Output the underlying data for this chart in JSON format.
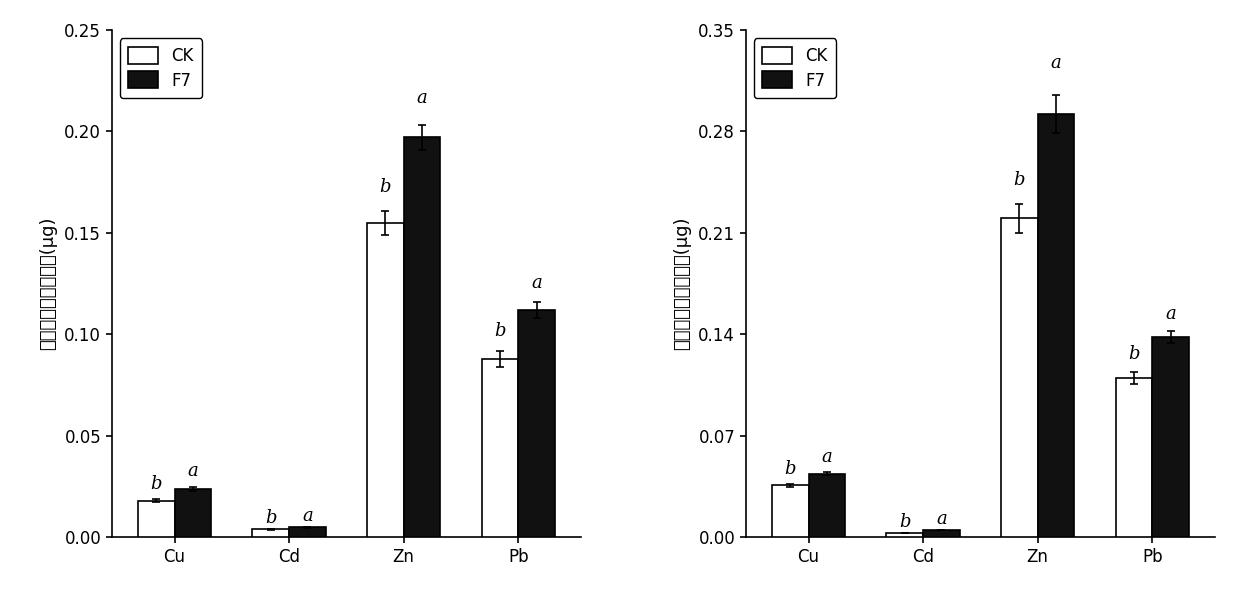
{
  "left": {
    "ylabel": "地上部重金属累积量(μg)",
    "categories": [
      "Cu",
      "Cd",
      "Zn",
      "Pb"
    ],
    "CK_values": [
      0.018,
      0.004,
      0.155,
      0.088
    ],
    "F7_values": [
      0.024,
      0.005,
      0.197,
      0.112
    ],
    "CK_errors": [
      0.0008,
      0.0003,
      0.006,
      0.004
    ],
    "F7_errors": [
      0.001,
      0.0003,
      0.006,
      0.004
    ],
    "ylim": [
      0,
      0.25
    ],
    "yticks": [
      0.0,
      0.05,
      0.1,
      0.15,
      0.2,
      0.25
    ],
    "CK_labels": [
      "b",
      "b",
      "b",
      "b"
    ],
    "F7_labels": [
      "a",
      "a",
      "a",
      "a"
    ],
    "CK_label_offsets": [
      0.003,
      0.001,
      0.007,
      0.005
    ],
    "F7_label_offsets": [
      0.003,
      0.001,
      0.009,
      0.005
    ]
  },
  "right": {
    "ylabel": "地下部重金属累积量(μg)",
    "categories": [
      "Cu",
      "Cd",
      "Zn",
      "Pb"
    ],
    "CK_values": [
      0.036,
      0.003,
      0.22,
      0.11
    ],
    "F7_values": [
      0.044,
      0.005,
      0.292,
      0.138
    ],
    "CK_errors": [
      0.001,
      0.0003,
      0.01,
      0.004
    ],
    "F7_errors": [
      0.001,
      0.0003,
      0.013,
      0.004
    ],
    "ylim": [
      0,
      0.35
    ],
    "yticks": [
      0.0,
      0.07,
      0.14,
      0.21,
      0.28,
      0.35
    ],
    "CK_labels": [
      "b",
      "b",
      "b",
      "b"
    ],
    "F7_labels": [
      "a",
      "a",
      "a",
      "a"
    ],
    "CK_label_offsets": [
      0.004,
      0.001,
      0.01,
      0.006
    ],
    "F7_label_offsets": [
      0.004,
      0.001,
      0.016,
      0.006
    ]
  },
  "bar_width": 0.32,
  "CK_color": "#ffffff",
  "F7_color": "#111111",
  "edge_color": "#000000",
  "tick_fontsize": 12,
  "ylabel_fontsize": 13,
  "legend_fontsize": 12,
  "sig_fontsize": 13,
  "background_color": "#ffffff"
}
